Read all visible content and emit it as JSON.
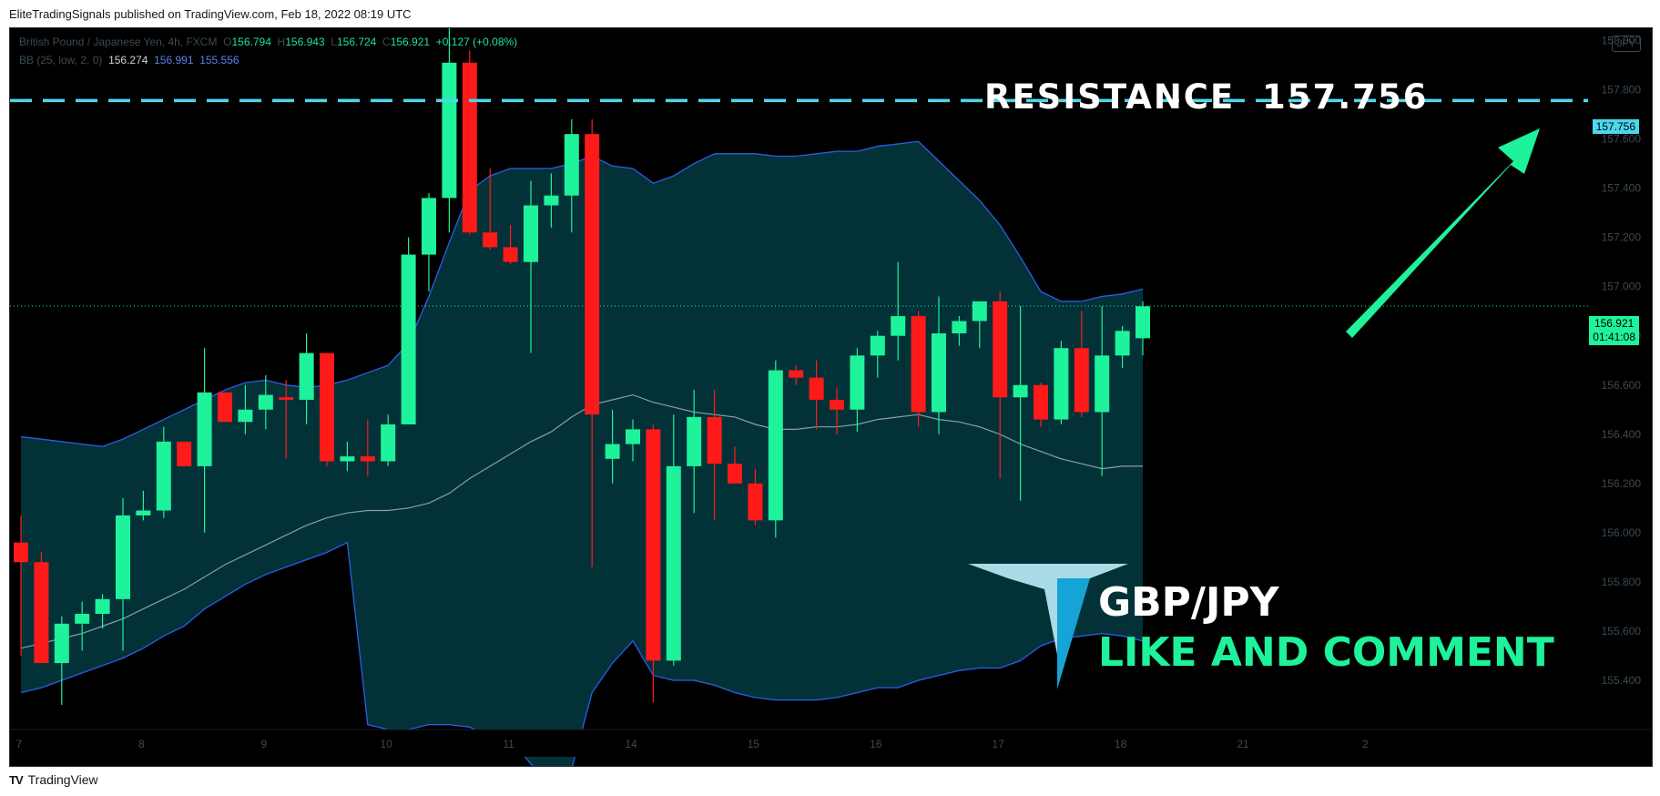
{
  "header": {
    "text": "EliteTradingSignals published on TradingView.com, Feb 18, 2022 08:19 UTC"
  },
  "legend": {
    "symbol": "British Pound / Japanese Yen, 4h, FXCM",
    "o_label": "O",
    "o": "156.794",
    "h_label": "H",
    "h": "156.943",
    "l_label": "L",
    "l": "156.724",
    "c_label": "C",
    "c": "156.921",
    "change": "+0.127 (+0.08%)",
    "bb_label": "BB (25, low, 2, 0)",
    "bb_basis": "156.274",
    "bb_upper": "156.991",
    "bb_lower": "155.556"
  },
  "currency": "JPY",
  "annotations": {
    "resistance_title": "RESISTANCE  157.756",
    "pair": "GBP/JPY",
    "cta": "LIKE AND COMMENT"
  },
  "price_tags": {
    "resistance": "157.756",
    "last_price": "156.921",
    "countdown": "01:41:08"
  },
  "footer": {
    "logo": "TV",
    "brand": "TradingView"
  },
  "colors": {
    "up": "#1ef29a",
    "down": "#ff1a1a",
    "band_fill": "#023238",
    "band_line": "#2e5de6",
    "basis_line": "#8a9ea5",
    "resistance": "#4dd7ee",
    "background": "#000000"
  },
  "chart_data": {
    "type": "candlestick",
    "ylim": [
      155.2,
      158.05
    ],
    "y_ticks": [
      "158.000",
      "157.800",
      "157.600",
      "157.400",
      "157.200",
      "157.000",
      "156.800",
      "156.600",
      "156.400",
      "156.200",
      "156.000",
      "155.800",
      "155.600",
      "155.400"
    ],
    "x_ticks": [
      "7",
      "8",
      "9",
      "10",
      "11",
      "14",
      "15",
      "16",
      "17",
      "18",
      "21",
      "2"
    ],
    "x_tick_bars": [
      0,
      6,
      12,
      18,
      24,
      30,
      36,
      42,
      48,
      54,
      60,
      66
    ],
    "resistance": 157.756,
    "last_price": 156.921,
    "candles": [
      {
        "o": 155.96,
        "h": 156.07,
        "l": 155.5,
        "c": 155.88
      },
      {
        "o": 155.88,
        "h": 155.92,
        "l": 155.47,
        "c": 155.47
      },
      {
        "o": 155.47,
        "h": 155.66,
        "l": 155.3,
        "c": 155.63
      },
      {
        "o": 155.63,
        "h": 155.72,
        "l": 155.52,
        "c": 155.67
      },
      {
        "o": 155.67,
        "h": 155.75,
        "l": 155.61,
        "c": 155.73
      },
      {
        "o": 155.73,
        "h": 156.14,
        "l": 155.52,
        "c": 156.07
      },
      {
        "o": 156.07,
        "h": 156.17,
        "l": 156.05,
        "c": 156.09
      },
      {
        "o": 156.09,
        "h": 156.43,
        "l": 156.06,
        "c": 156.37
      },
      {
        "o": 156.37,
        "h": 156.37,
        "l": 156.27,
        "c": 156.27
      },
      {
        "o": 156.27,
        "h": 156.75,
        "l": 156.0,
        "c": 156.57
      },
      {
        "o": 156.57,
        "h": 156.57,
        "l": 156.45,
        "c": 156.45
      },
      {
        "o": 156.45,
        "h": 156.6,
        "l": 156.4,
        "c": 156.5
      },
      {
        "o": 156.5,
        "h": 156.64,
        "l": 156.42,
        "c": 156.56
      },
      {
        "o": 156.55,
        "h": 156.62,
        "l": 156.3,
        "c": 156.54
      },
      {
        "o": 156.54,
        "h": 156.81,
        "l": 156.44,
        "c": 156.73
      },
      {
        "o": 156.73,
        "h": 156.73,
        "l": 156.27,
        "c": 156.29
      },
      {
        "o": 156.29,
        "h": 156.37,
        "l": 156.25,
        "c": 156.31
      },
      {
        "o": 156.31,
        "h": 156.46,
        "l": 156.23,
        "c": 156.29
      },
      {
        "o": 156.29,
        "h": 156.48,
        "l": 156.27,
        "c": 156.44
      },
      {
        "o": 156.44,
        "h": 157.2,
        "l": 156.44,
        "c": 157.13
      },
      {
        "o": 157.13,
        "h": 157.38,
        "l": 156.98,
        "c": 157.36
      },
      {
        "o": 157.36,
        "h": 158.06,
        "l": 157.22,
        "c": 157.91
      },
      {
        "o": 157.91,
        "h": 157.96,
        "l": 157.21,
        "c": 157.22
      },
      {
        "o": 157.22,
        "h": 157.48,
        "l": 157.15,
        "c": 157.16
      },
      {
        "o": 157.16,
        "h": 157.25,
        "l": 157.09,
        "c": 157.1
      },
      {
        "o": 157.1,
        "h": 157.43,
        "l": 156.73,
        "c": 157.33
      },
      {
        "o": 157.33,
        "h": 157.46,
        "l": 157.24,
        "c": 157.37
      },
      {
        "o": 157.37,
        "h": 157.68,
        "l": 157.22,
        "c": 157.62
      },
      {
        "o": 157.62,
        "h": 157.68,
        "l": 155.86,
        "c": 156.48
      },
      {
        "o": 156.3,
        "h": 156.5,
        "l": 156.2,
        "c": 156.36
      },
      {
        "o": 156.36,
        "h": 156.46,
        "l": 156.29,
        "c": 156.42
      },
      {
        "o": 156.42,
        "h": 156.44,
        "l": 155.31,
        "c": 155.48
      },
      {
        "o": 155.48,
        "h": 156.48,
        "l": 155.46,
        "c": 156.27
      },
      {
        "o": 156.27,
        "h": 156.58,
        "l": 156.08,
        "c": 156.47
      },
      {
        "o": 156.47,
        "h": 156.58,
        "l": 156.05,
        "c": 156.28
      },
      {
        "o": 156.28,
        "h": 156.35,
        "l": 156.2,
        "c": 156.2
      },
      {
        "o": 156.2,
        "h": 156.26,
        "l": 156.03,
        "c": 156.05
      },
      {
        "o": 156.05,
        "h": 156.7,
        "l": 155.98,
        "c": 156.66
      },
      {
        "o": 156.66,
        "h": 156.68,
        "l": 156.6,
        "c": 156.63
      },
      {
        "o": 156.63,
        "h": 156.7,
        "l": 156.42,
        "c": 156.54
      },
      {
        "o": 156.54,
        "h": 156.59,
        "l": 156.4,
        "c": 156.5
      },
      {
        "o": 156.5,
        "h": 156.75,
        "l": 156.41,
        "c": 156.72
      },
      {
        "o": 156.72,
        "h": 156.82,
        "l": 156.63,
        "c": 156.8
      },
      {
        "o": 156.8,
        "h": 157.1,
        "l": 156.7,
        "c": 156.88
      },
      {
        "o": 156.88,
        "h": 156.9,
        "l": 156.43,
        "c": 156.49
      },
      {
        "o": 156.49,
        "h": 156.96,
        "l": 156.4,
        "c": 156.81
      },
      {
        "o": 156.81,
        "h": 156.88,
        "l": 156.76,
        "c": 156.86
      },
      {
        "o": 156.86,
        "h": 156.93,
        "l": 156.75,
        "c": 156.94
      },
      {
        "o": 156.94,
        "h": 156.98,
        "l": 156.22,
        "c": 156.55
      },
      {
        "o": 156.55,
        "h": 156.92,
        "l": 156.13,
        "c": 156.6
      },
      {
        "o": 156.6,
        "h": 156.61,
        "l": 156.43,
        "c": 156.46
      },
      {
        "o": 156.46,
        "h": 156.78,
        "l": 156.44,
        "c": 156.75
      },
      {
        "o": 156.75,
        "h": 156.9,
        "l": 156.47,
        "c": 156.49
      },
      {
        "o": 156.49,
        "h": 156.92,
        "l": 156.23,
        "c": 156.72
      },
      {
        "o": 156.72,
        "h": 156.84,
        "l": 156.67,
        "c": 156.82
      },
      {
        "o": 156.79,
        "h": 156.94,
        "l": 156.72,
        "c": 156.92
      }
    ],
    "bb_upper": [
      156.39,
      156.38,
      156.37,
      156.36,
      156.35,
      156.38,
      156.42,
      156.46,
      156.5,
      156.54,
      156.58,
      156.61,
      156.62,
      156.6,
      156.59,
      156.6,
      156.62,
      156.65,
      156.68,
      156.77,
      156.96,
      157.18,
      157.39,
      157.45,
      157.48,
      157.48,
      157.48,
      157.5,
      157.53,
      157.49,
      157.48,
      157.42,
      157.45,
      157.5,
      157.54,
      157.54,
      157.54,
      157.53,
      157.53,
      157.54,
      157.55,
      157.55,
      157.57,
      157.58,
      157.59,
      157.51,
      157.43,
      157.35,
      157.25,
      157.12,
      156.98,
      156.94,
      156.94,
      156.96,
      156.97,
      156.99
    ],
    "bb_basis": [
      155.53,
      155.55,
      155.57,
      155.59,
      155.62,
      155.65,
      155.69,
      155.73,
      155.77,
      155.82,
      155.87,
      155.91,
      155.95,
      155.99,
      156.03,
      156.06,
      156.08,
      156.09,
      156.09,
      156.1,
      156.12,
      156.16,
      156.22,
      156.27,
      156.32,
      156.37,
      156.41,
      156.47,
      156.52,
      156.54,
      156.56,
      156.53,
      156.51,
      156.49,
      156.48,
      156.47,
      156.44,
      156.42,
      156.42,
      156.43,
      156.43,
      156.44,
      156.46,
      156.47,
      156.48,
      156.46,
      156.45,
      156.43,
      156.4,
      156.36,
      156.33,
      156.3,
      156.28,
      156.26,
      156.27,
      156.27
    ],
    "bb_lower": [
      155.35,
      155.37,
      155.4,
      155.43,
      155.46,
      155.49,
      155.53,
      155.58,
      155.62,
      155.69,
      155.74,
      155.79,
      155.83,
      155.86,
      155.89,
      155.92,
      155.96,
      155.22,
      155.2,
      155.2,
      155.22,
      155.22,
      155.21,
      155.17,
      155.16,
      155.06,
      154.98,
      155.04,
      155.35,
      155.47,
      155.56,
      155.42,
      155.4,
      155.4,
      155.38,
      155.35,
      155.33,
      155.32,
      155.32,
      155.32,
      155.33,
      155.35,
      155.37,
      155.37,
      155.4,
      155.42,
      155.44,
      155.45,
      155.45,
      155.48,
      155.54,
      155.57,
      155.58,
      155.59,
      155.58,
      155.56
    ]
  }
}
